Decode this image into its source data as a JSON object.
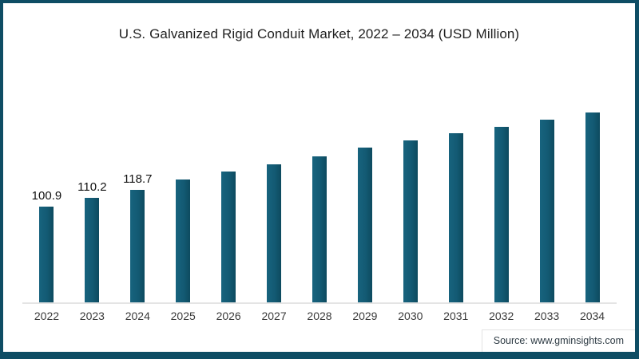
{
  "page": {
    "title": "U.S. Galvanized Rigid Conduit Market, 2022 – 2034 (USD Million)",
    "source_text": "Source: www.gminsights.com"
  },
  "colors": {
    "bar": "#135a73",
    "bar_gradient_left": "#17637e",
    "bar_gradient_right": "#0d4a5f",
    "frame_border": "#0e4d64",
    "axis_line": "#e4e4e4",
    "title_text": "#202020",
    "year_label_text": "#3a3a3a",
    "value_label_text": "#111111",
    "source_text": "#2e3b44"
  },
  "chart_data": {
    "type": "bar",
    "title": "U.S. Galvanized Rigid Conduit Market, 2022 – 2034 (USD Million)",
    "categories": [
      "2022",
      "2023",
      "2024",
      "2025",
      "2026",
      "2027",
      "2028",
      "2029",
      "2030",
      "2031",
      "2032",
      "2033",
      "2034"
    ],
    "values": [
      100.9,
      110.2,
      118.7,
      129.1,
      137.5,
      145.3,
      154.2,
      162.7,
      170.3,
      178.1,
      185.2,
      192.2,
      199.7
    ],
    "data_labels": [
      "100.9",
      "110.2",
      "118.7",
      null,
      null,
      null,
      null,
      null,
      null,
      null,
      null,
      null,
      null
    ],
    "xlabel": "",
    "ylabel": "",
    "ylim": [
      0,
      210
    ],
    "grid": false,
    "legend": false,
    "y_axis_visible": false,
    "x_axis_line": true,
    "bar_color": "#135a73"
  }
}
